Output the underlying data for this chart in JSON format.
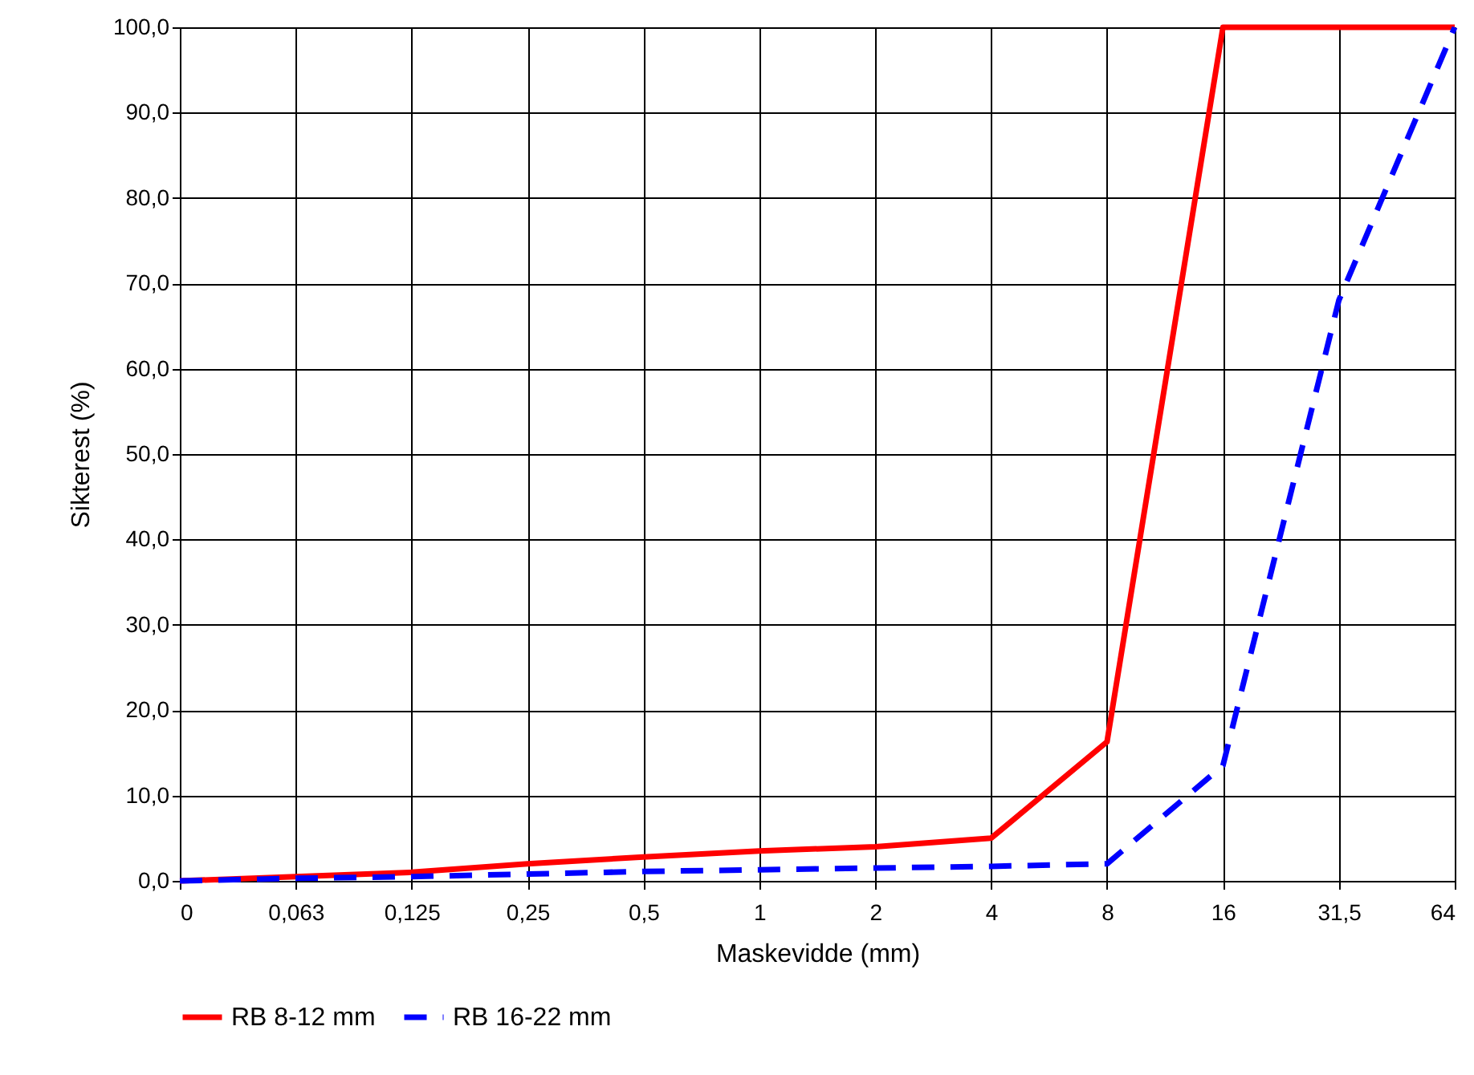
{
  "chart_data": {
    "type": "line",
    "xlabel": "Maskevidde (mm)",
    "ylabel": "Sikterest (%)",
    "categories": [
      "0",
      "0,063",
      "0,125",
      "0,25",
      "0,5",
      "1",
      "2",
      "4",
      "8",
      "16",
      "31,5",
      "64"
    ],
    "series": [
      {
        "name": "RB 8-12 mm",
        "color": "#ff0000",
        "line_style": "solid",
        "values": [
          0,
          0.5,
          1,
          2,
          2.8,
          3.5,
          4,
          5,
          16.3,
          100,
          100,
          100
        ]
      },
      {
        "name": "RB 16-22 mm",
        "color": "#0000ff",
        "line_style": "dashed",
        "values": [
          0,
          0.3,
          0.5,
          0.8,
          1.1,
          1.3,
          1.5,
          1.7,
          2,
          13.5,
          68,
          100
        ]
      }
    ],
    "ylim": [
      0,
      100
    ],
    "yticks": [
      {
        "value": 0,
        "label": "0,0"
      },
      {
        "value": 10,
        "label": "10,0"
      },
      {
        "value": 20,
        "label": "20,0"
      },
      {
        "value": 30,
        "label": "30,0"
      },
      {
        "value": 40,
        "label": "40,0"
      },
      {
        "value": 50,
        "label": "50,0"
      },
      {
        "value": 60,
        "label": "60,0"
      },
      {
        "value": 70,
        "label": "70,0"
      },
      {
        "value": 80,
        "label": "80,0"
      },
      {
        "value": 90,
        "label": "90,0"
      },
      {
        "value": 100,
        "label": "100,0"
      }
    ],
    "grid": true,
    "legend": "bottom",
    "marker": "none"
  }
}
